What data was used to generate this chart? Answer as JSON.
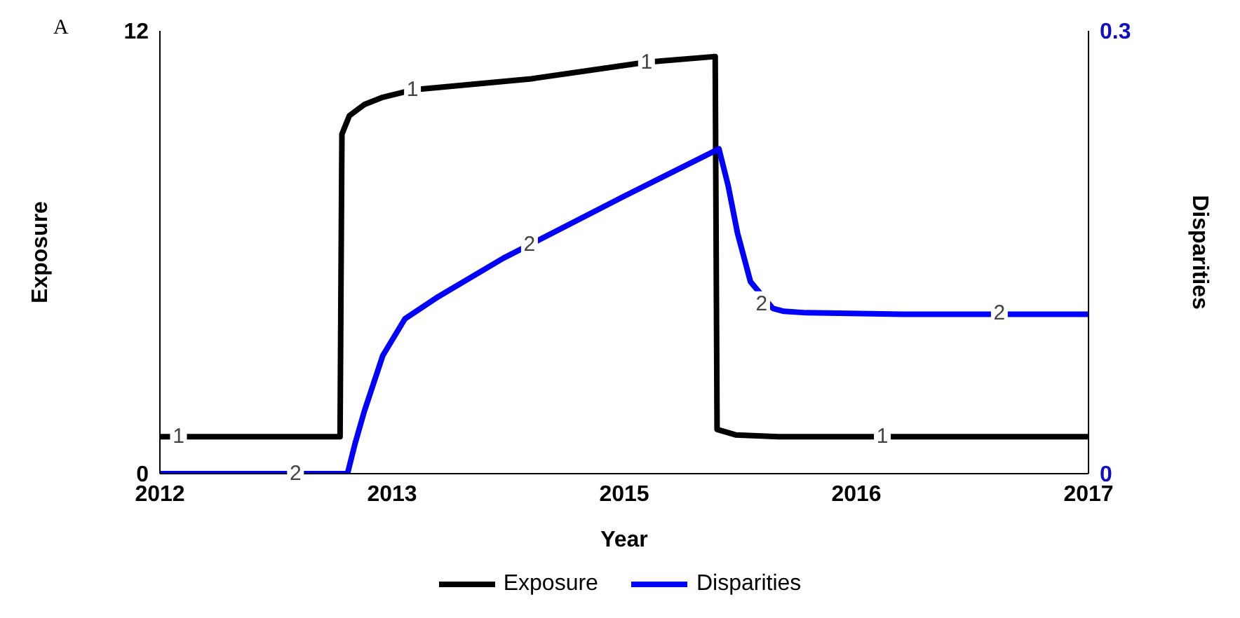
{
  "chart_data": {
    "type": "line",
    "xlabel": "Year",
    "ylabel": "Exposure",
    "y2label": "Disparities",
    "xlim": [
      2012,
      2017
    ],
    "xticks": [
      {
        "value": 2012,
        "label": "2012"
      },
      {
        "value": 2013.25,
        "label": "2013"
      },
      {
        "value": 2014.5,
        "label": "2015"
      },
      {
        "value": 2015.75,
        "label": "2016"
      },
      {
        "value": 2017,
        "label": "2017"
      }
    ],
    "ylim": [
      0,
      12
    ],
    "yticks": [
      0,
      12
    ],
    "y2lim": [
      0,
      0.3
    ],
    "y2ticks": [
      0,
      0.3
    ],
    "grid": false,
    "legend": "bottom",
    "marker": "none",
    "line_style": "solid",
    "series": [
      {
        "name": "Exposure",
        "color": "#000000",
        "x": [
          2012,
          2012.97,
          2012.98,
          2013.02,
          2013.1,
          2013.2,
          2013.36,
          2014.0,
          2014.62,
          2014.98,
          2014.99,
          2015.0,
          2015.1,
          2015.33,
          2016.0,
          2017
        ],
        "values": [
          1.0,
          1.0,
          9.2,
          9.7,
          10.0,
          10.2,
          10.4,
          10.7,
          11.15,
          11.3,
          11.3,
          1.2,
          1.05,
          1.0,
          1.0,
          1.0
        ]
      },
      {
        "name": "Disparities",
        "color": "#0000ff",
        "axis": "y2",
        "x": [
          2012,
          2013.01,
          2013.05,
          2013.1,
          2013.2,
          2013.32,
          2013.5,
          2013.85,
          2014.5,
          2015.01,
          2015.06,
          2015.11,
          2015.18,
          2015.3,
          2015.36,
          2015.48,
          2016.0,
          2017
        ],
        "values": [
          0,
          0,
          0.02,
          0.042,
          0.08,
          0.105,
          0.12,
          0.146,
          0.188,
          0.22,
          0.195,
          0.163,
          0.13,
          0.112,
          0.11,
          0.109,
          0.108,
          0.108
        ]
      }
    ],
    "annotations": [
      "A",
      {
        "text": "1",
        "x": 2012.1,
        "y": 1.0
      },
      {
        "text": "1",
        "x": 2013.36,
        "y": 10.4
      },
      {
        "text": "1",
        "x": 2014.62,
        "y": 11.15
      },
      {
        "text": "1",
        "x": 2015.89,
        "y": 1.0
      },
      {
        "text": "2",
        "x": 2012.73,
        "y": 0
      },
      {
        "text": "2",
        "x": 2013.99,
        "y": 6.2
      },
      {
        "text": "2",
        "x": 2015.24,
        "y": 4.6
      },
      {
        "text": "2",
        "x": 2016.52,
        "y": 4.35
      }
    ]
  }
}
